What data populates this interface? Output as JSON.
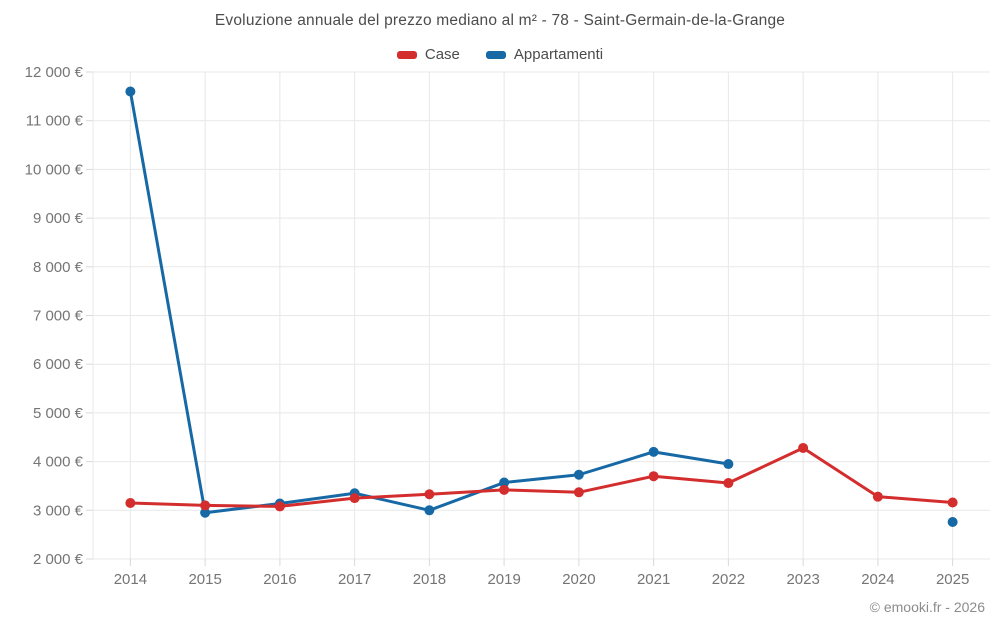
{
  "footer": {
    "copyright": "© emooki.fr - 2026"
  },
  "colors": {
    "grid": "#e8e8e8",
    "tick": "#d9d9d9",
    "axis_text": "#757575",
    "title_text": "#4c4c4c",
    "copyright_text": "#8c8c8c"
  },
  "chart_data": {
    "type": "line",
    "title": "Evoluzione annuale del prezzo mediano al m² - 78 - Saint-Germain-de-la-Grange",
    "categories": [
      "2014",
      "2015",
      "2016",
      "2017",
      "2018",
      "2019",
      "2020",
      "2021",
      "2022",
      "2023",
      "2024",
      "2025"
    ],
    "series": [
      {
        "name": "Case",
        "color": "#d32d2d",
        "values": [
          3150,
          3100,
          3080,
          3250,
          3330,
          3420,
          3370,
          3700,
          3560,
          4280,
          3280,
          3160
        ]
      },
      {
        "name": "Appartamenti",
        "color": "#1769a6",
        "values": [
          11600,
          2950,
          3140,
          3350,
          3000,
          3570,
          3730,
          4200,
          3950,
          null,
          null,
          2760
        ]
      }
    ],
    "xlabel": "",
    "ylabel": "",
    "ylim": [
      2000,
      12000
    ],
    "ytick_step": 1000,
    "yticks": [
      {
        "value": 2000,
        "label": "2 000 €"
      },
      {
        "value": 3000,
        "label": "3 000 €"
      },
      {
        "value": 4000,
        "label": "4 000 €"
      },
      {
        "value": 5000,
        "label": "5 000 €"
      },
      {
        "value": 6000,
        "label": "6 000 €"
      },
      {
        "value": 7000,
        "label": "7 000 €"
      },
      {
        "value": 8000,
        "label": "8 000 €"
      },
      {
        "value": 9000,
        "label": "9 000 €"
      },
      {
        "value": 10000,
        "label": "10 000 €"
      },
      {
        "value": 11000,
        "label": "11 000 €"
      },
      {
        "value": 12000,
        "label": "12 000 €"
      }
    ],
    "grid": true,
    "legend_position": "top"
  }
}
